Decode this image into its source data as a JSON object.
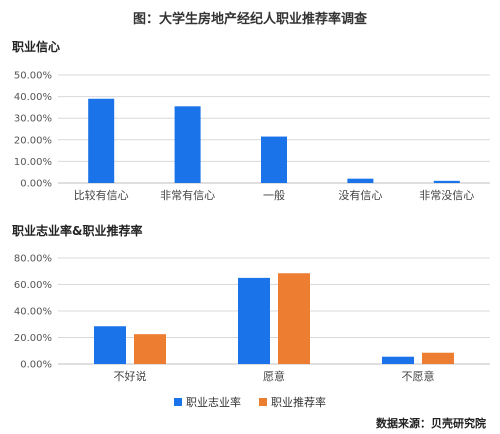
{
  "page_title": "图：大学生房地产经纪人职业推荐率调查",
  "source": "数据来源：贝壳研究院",
  "colors": {
    "blue": "#1a73e8",
    "orange": "#ed7d31",
    "grid": "#d9d9d9"
  },
  "chart_data": [
    {
      "type": "bar",
      "title": "职业信心",
      "categories": [
        "比较有信心",
        "非常有信心",
        "一般",
        "没有信心",
        "非常没信心"
      ],
      "series": [
        {
          "values": [
            39.0,
            35.5,
            21.5,
            2.0,
            1.0
          ],
          "color": "#1a73e8"
        }
      ],
      "ylim": [
        0,
        50
      ],
      "yticks": [
        "0.00%",
        "10.00%",
        "20.00%",
        "30.00%",
        "40.00%",
        "50.00%"
      ],
      "grid": true
    },
    {
      "type": "bar",
      "title": "职业志业率&职业推荐率",
      "categories": [
        "不好说",
        "愿意",
        "不愿意"
      ],
      "series": [
        {
          "name": "职业志业率",
          "values": [
            28.5,
            65.0,
            5.5
          ],
          "color": "#1a73e8"
        },
        {
          "name": "职业推荐率",
          "values": [
            22.5,
            68.5,
            8.5
          ],
          "color": "#ed7d31"
        }
      ],
      "ylim": [
        0,
        80
      ],
      "yticks": [
        "0.00%",
        "20.00%",
        "40.00%",
        "60.00%",
        "80.00%"
      ],
      "grid": true,
      "legend": "bottom"
    }
  ]
}
